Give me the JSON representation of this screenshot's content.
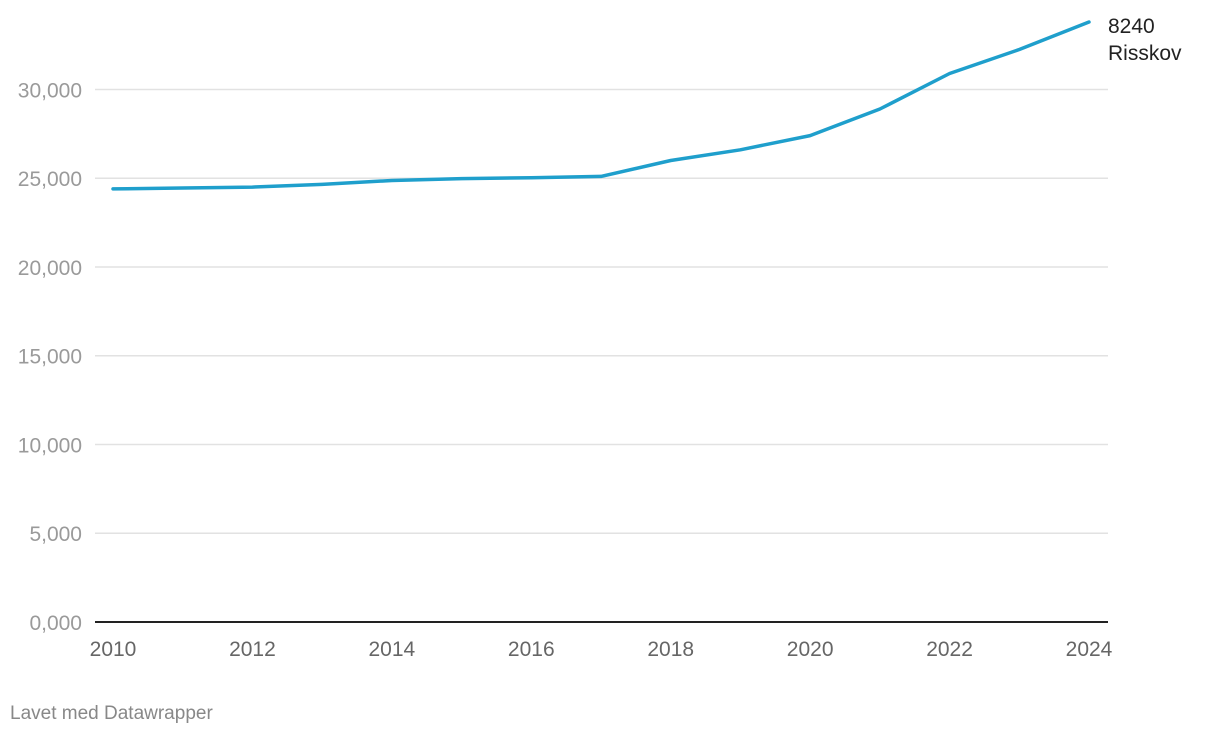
{
  "chart_data": {
    "type": "line",
    "x": [
      2010,
      2011,
      2012,
      2013,
      2014,
      2015,
      2016,
      2017,
      2018,
      2019,
      2020,
      2021,
      2022,
      2023,
      2024
    ],
    "series": [
      {
        "name": "8240 Risskov",
        "label_lines": [
          "8240",
          "Risskov"
        ],
        "values": [
          24400,
          24450,
          24500,
          24650,
          24870,
          24980,
          25030,
          25100,
          26000,
          26600,
          27400,
          28900,
          30900,
          32250,
          33800
        ],
        "color": "#1f9fcc"
      }
    ],
    "ylim": [
      0,
      33800
    ],
    "yticks": [
      0,
      5000,
      10000,
      15000,
      20000,
      25000,
      30000
    ],
    "ytick_labels": [
      "0,000",
      "5,000",
      "10,000",
      "15,000",
      "20,000",
      "25,000",
      "30,000"
    ],
    "xticks": [
      2010,
      2012,
      2014,
      2016,
      2018,
      2020,
      2022,
      2024
    ],
    "xtick_labels": [
      "2010",
      "2012",
      "2014",
      "2016",
      "2018",
      "2020",
      "2022",
      "2024"
    ],
    "grid": true,
    "title": "",
    "xlabel": "",
    "ylabel": ""
  },
  "footer": "Lavet med Datawrapper",
  "colors": {
    "line": "#1f9fcc",
    "grid": "#e2e2e2",
    "baseline": "#222222"
  }
}
